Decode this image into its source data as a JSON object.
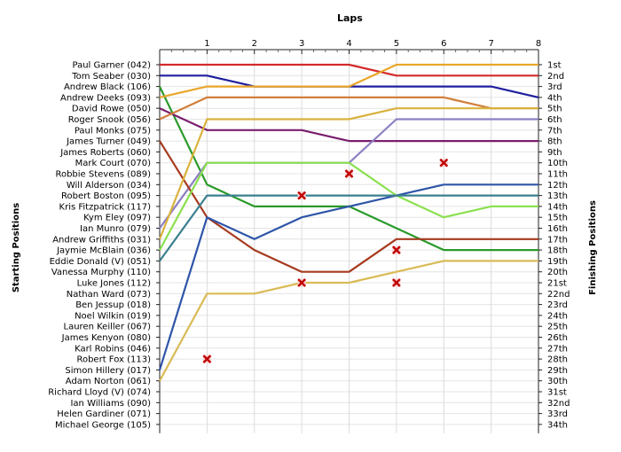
{
  "chart_data": {
    "type": "line",
    "title": "Laps",
    "left_axis_label": "Starting Positions",
    "right_axis_label": "Finishing Positions",
    "x_ticks": [
      "1",
      "2",
      "3",
      "4",
      "5",
      "6",
      "7",
      "8"
    ],
    "starters": [
      "Paul Garner (042)",
      "Tom Seaber (030)",
      "Andrew Black (106)",
      "Andrew Deeks (093)",
      "David Rowe (050)",
      "Roger Snook (056)",
      "Paul Monks (075)",
      "James Turner (049)",
      "James Roberts (060)",
      "Mark Court (070)",
      "Robbie Stevens (089)",
      "Will Alderson (034)",
      "Robert Boston (095)",
      "Kris Fitzpatrick (117)",
      "Kym Eley (097)",
      "Ian Munro (079)",
      "Andrew Griffiths (031)",
      "Jaymie McBlain (036)",
      "Eddie Donald (V) (051)",
      "Vanessa Murphy (110)",
      "Luke Jones (112)",
      "Nathan Ward (073)",
      "Ben Jessup (018)",
      "Noel Wilkin (019)",
      "Lauren Keiller (067)",
      "James Kenyon (080)",
      "Karl Robins (046)",
      "Robert Fox (113)",
      "Simon Hillery (017)",
      "Adam Norton (061)",
      "Richard Lloyd (V) (074)",
      "Ian Williams (090)",
      "Helen Gardiner (071)",
      "Michael George (105)"
    ],
    "finish_labels": [
      "1st",
      "2nd",
      "3rd",
      "4th",
      "5th",
      "6th",
      "7th",
      "8th",
      "9th",
      "10th",
      "11th",
      "12th",
      "13th",
      "14th",
      "15th",
      "16th",
      "17th",
      "18th",
      "19th",
      "20th",
      "21st",
      "22nd",
      "23rd",
      "24th",
      "25th",
      "26th",
      "27th",
      "28th",
      "29th",
      "30th",
      "31st",
      "32nd",
      "33rd",
      "34th"
    ],
    "series": [
      {
        "color": "#d42a2a",
        "values": [
          1,
          1,
          1,
          1,
          1,
          2,
          2,
          2,
          2
        ]
      },
      {
        "color": "#1f1f9f",
        "values": [
          2,
          2,
          3,
          3,
          3,
          3,
          3,
          3,
          4
        ]
      },
      {
        "color": "#2a9a2a",
        "values": [
          3,
          12,
          14,
          14,
          14,
          16,
          18,
          18,
          18
        ]
      },
      {
        "color": "#e8a62a",
        "values": [
          4,
          3,
          3,
          3,
          3,
          1,
          1,
          1,
          1
        ]
      },
      {
        "color": "#7a1f6e",
        "values": [
          5,
          7,
          7,
          7,
          8,
          8,
          8,
          8,
          8
        ]
      },
      {
        "color": "#d27f3a",
        "values": [
          6,
          4,
          4,
          4,
          4,
          4,
          4,
          5,
          5
        ]
      },
      {
        "color": "#8d7fc2",
        "values": [
          16,
          10,
          10,
          10,
          10,
          6,
          6,
          6,
          6
        ]
      },
      {
        "color": "#a63a1e",
        "values": [
          8,
          15,
          18,
          20,
          20,
          17,
          17,
          17,
          17
        ]
      },
      {
        "color": "#d9b23c",
        "values": [
          17,
          6,
          6,
          6,
          6,
          5,
          5,
          5,
          5
        ]
      },
      {
        "color": "#8be04f",
        "values": [
          18,
          10,
          10,
          10,
          10,
          13,
          15,
          14,
          14
        ]
      },
      {
        "color": "#2e55a8",
        "values": [
          29,
          15,
          17,
          15,
          14,
          13,
          12,
          12,
          12
        ]
      },
      {
        "color": "#3a7f8f",
        "values": [
          19,
          13,
          13,
          13,
          13,
          13,
          13,
          13,
          13
        ]
      },
      {
        "color": "#d9bb55",
        "values": [
          30,
          22,
          22,
          21,
          21,
          20,
          19,
          19,
          19
        ]
      }
    ],
    "markers": [
      {
        "x": 1,
        "y": 28
      },
      {
        "x": 3,
        "y": 13
      },
      {
        "x": 3,
        "y": 21
      },
      {
        "x": 4,
        "y": 11
      },
      {
        "x": 5,
        "y": 18
      },
      {
        "x": 5,
        "y": 21
      },
      {
        "x": 6,
        "y": 10
      }
    ],
    "grid": true
  }
}
